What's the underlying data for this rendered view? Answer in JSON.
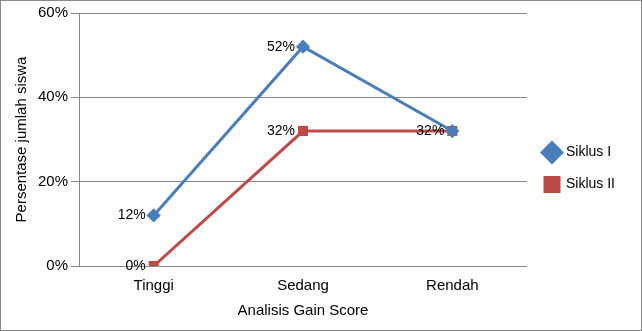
{
  "chart_data": {
    "type": "line",
    "x_label": "Analisis Gain Score",
    "y_label": "Persentase jumlah siswa",
    "categories": [
      "Tinggi",
      "Sedang",
      "Rendah"
    ],
    "series": [
      {
        "name": "Siklus I",
        "color": "#4a7ebb",
        "marker": "diamond",
        "values": [
          12,
          52,
          32
        ],
        "value_labels": [
          "12%",
          "52%",
          null
        ]
      },
      {
        "name": "Siklus II",
        "color": "#be4b48",
        "marker": "square",
        "values": [
          0,
          32,
          32
        ],
        "value_labels": [
          "0%",
          "32%",
          "32%"
        ]
      }
    ],
    "ylim": [
      0,
      60
    ],
    "yticks": [
      {
        "value": 0,
        "label": "0%"
      },
      {
        "value": 20,
        "label": "20%"
      },
      {
        "value": 40,
        "label": "40%"
      },
      {
        "value": 60,
        "label": "60%"
      }
    ],
    "grid": true,
    "legend": "right",
    "data_labels": true
  }
}
